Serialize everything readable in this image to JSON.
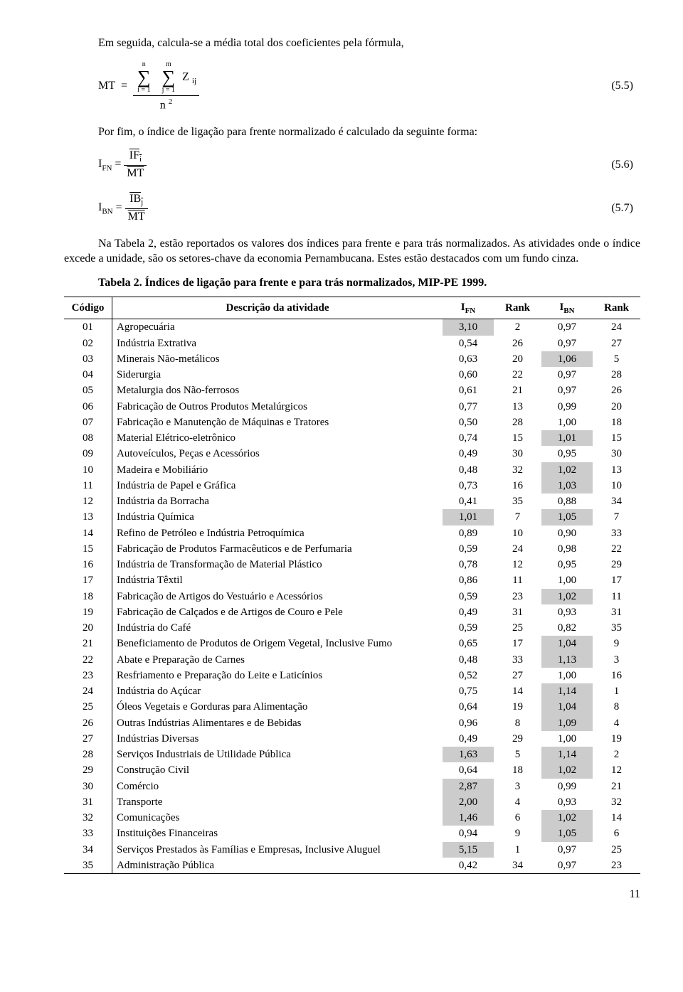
{
  "text": {
    "p1": "Em seguida, calcula-se a média total dos coeficientes pela fórmula,",
    "p2": "Por fim, o índice de ligação para frente normalizado é calculado da seguinte forma:",
    "p3": "Na Tabela 2, estão reportados os valores dos índices para frente e para trás normalizados. As atividades onde o índice excede a unidade, são os setores-chave da economia Pernambucana. Estes estão destacados com um fundo cinza.",
    "tableTitle": "Tabela 2. Índices de ligação para frente e para trás normalizados, MIP-PE 1999.",
    "pageNumber": "11"
  },
  "eq": {
    "e55_num": "(5.5)",
    "e56_num": "(5.6)",
    "e57_num": "(5.7)"
  },
  "table": {
    "headers": {
      "codigo": "Código",
      "desc": "Descrição da atividade",
      "ifn": "I",
      "ifn_sub": "FN",
      "rank1": "Rank",
      "ibn": "I",
      "ibn_sub": "BN",
      "rank2": "Rank"
    },
    "highlight_color": "#cccccc",
    "rows": [
      {
        "c": "01",
        "d": "Agropecuária",
        "ifn": "3,10",
        "r1": "2",
        "ibn": "0,97",
        "r2": "24",
        "h_ifn": true
      },
      {
        "c": "02",
        "d": "Indústria Extrativa",
        "ifn": "0,54",
        "r1": "26",
        "ibn": "0,97",
        "r2": "27"
      },
      {
        "c": "03",
        "d": "Minerais Não-metálicos",
        "ifn": "0,63",
        "r1": "20",
        "ibn": "1,06",
        "r2": "5",
        "h_ibn": true
      },
      {
        "c": "04",
        "d": "Siderurgia",
        "ifn": "0,60",
        "r1": "22",
        "ibn": "0,97",
        "r2": "28"
      },
      {
        "c": "05",
        "d": "Metalurgia dos Não-ferrosos",
        "ifn": "0,61",
        "r1": "21",
        "ibn": "0,97",
        "r2": "26"
      },
      {
        "c": "06",
        "d": "Fabricação de Outros Produtos Metalúrgicos",
        "ifn": "0,77",
        "r1": "13",
        "ibn": "0,99",
        "r2": "20"
      },
      {
        "c": "07",
        "d": "Fabricação e Manutenção de Máquinas e Tratores",
        "ifn": "0,50",
        "r1": "28",
        "ibn": "1,00",
        "r2": "18"
      },
      {
        "c": "08",
        "d": "Material Elétrico-eletrônico",
        "ifn": "0,74",
        "r1": "15",
        "ibn": "1,01",
        "r2": "15",
        "h_ibn": true
      },
      {
        "c": "09",
        "d": "Autoveículos, Peças e Acessórios",
        "ifn": "0,49",
        "r1": "30",
        "ibn": "0,95",
        "r2": "30"
      },
      {
        "c": "10",
        "d": "Madeira e Mobiliário",
        "ifn": "0,48",
        "r1": "32",
        "ibn": "1,02",
        "r2": "13",
        "h_ibn": true
      },
      {
        "c": "11",
        "d": "Indústria de Papel e Gráfica",
        "ifn": "0,73",
        "r1": "16",
        "ibn": "1,03",
        "r2": "10",
        "h_ibn": true
      },
      {
        "c": "12",
        "d": "Indústria da Borracha",
        "ifn": "0,41",
        "r1": "35",
        "ibn": "0,88",
        "r2": "34"
      },
      {
        "c": "13",
        "d": "Indústria Química",
        "ifn": "1,01",
        "r1": "7",
        "ibn": "1,05",
        "r2": "7",
        "h_ifn": true,
        "h_ibn": true
      },
      {
        "c": "14",
        "d": "Refino de Petróleo e Indústria Petroquímica",
        "ifn": "0,89",
        "r1": "10",
        "ibn": "0,90",
        "r2": "33"
      },
      {
        "c": "15",
        "d": "Fabricação de Produtos Farmacêuticos e de Perfumaria",
        "ifn": "0,59",
        "r1": "24",
        "ibn": "0,98",
        "r2": "22"
      },
      {
        "c": "16",
        "d": "Indústria de Transformação de Material Plástico",
        "ifn": "0,78",
        "r1": "12",
        "ibn": "0,95",
        "r2": "29"
      },
      {
        "c": "17",
        "d": "Indústria Têxtil",
        "ifn": "0,86",
        "r1": "11",
        "ibn": "1,00",
        "r2": "17"
      },
      {
        "c": "18",
        "d": "Fabricação de Artigos do Vestuário e Acessórios",
        "ifn": "0,59",
        "r1": "23",
        "ibn": "1,02",
        "r2": "11",
        "h_ibn": true
      },
      {
        "c": "19",
        "d": "Fabricação de Calçados e de Artigos de Couro e Pele",
        "ifn": "0,49",
        "r1": "31",
        "ibn": "0,93",
        "r2": "31"
      },
      {
        "c": "20",
        "d": "Indústria do Café",
        "ifn": "0,59",
        "r1": "25",
        "ibn": "0,82",
        "r2": "35"
      },
      {
        "c": "21",
        "d": "Beneficiamento de Produtos de Origem Vegetal, Inclusive Fumo",
        "ifn": "0,65",
        "r1": "17",
        "ibn": "1,04",
        "r2": "9",
        "h_ibn": true
      },
      {
        "c": "22",
        "d": "Abate e Preparação de Carnes",
        "ifn": "0,48",
        "r1": "33",
        "ibn": "1,13",
        "r2": "3",
        "h_ibn": true
      },
      {
        "c": "23",
        "d": "Resfriamento e Preparação do Leite e Laticínios",
        "ifn": "0,52",
        "r1": "27",
        "ibn": "1,00",
        "r2": "16"
      },
      {
        "c": "24",
        "d": "Indústria do Açúcar",
        "ifn": "0,75",
        "r1": "14",
        "ibn": "1,14",
        "r2": "1",
        "h_ibn": true
      },
      {
        "c": "25",
        "d": "Óleos Vegetais e Gorduras para Alimentação",
        "ifn": "0,64",
        "r1": "19",
        "ibn": "1,04",
        "r2": "8",
        "h_ibn": true
      },
      {
        "c": "26",
        "d": "Outras Indústrias Alimentares e de Bebidas",
        "ifn": "0,96",
        "r1": "8",
        "ibn": "1,09",
        "r2": "4",
        "h_ibn": true
      },
      {
        "c": "27",
        "d": "Indústrias Diversas",
        "ifn": "0,49",
        "r1": "29",
        "ibn": "1,00",
        "r2": "19"
      },
      {
        "c": "28",
        "d": "Serviços Industriais de Utilidade Pública",
        "ifn": "1,63",
        "r1": "5",
        "ibn": "1,14",
        "r2": "2",
        "h_ifn": true,
        "h_ibn": true
      },
      {
        "c": "29",
        "d": "Construção Civil",
        "ifn": "0,64",
        "r1": "18",
        "ibn": "1,02",
        "r2": "12",
        "h_ibn": true
      },
      {
        "c": "30",
        "d": "Comércio",
        "ifn": "2,87",
        "r1": "3",
        "ibn": "0,99",
        "r2": "21",
        "h_ifn": true
      },
      {
        "c": "31",
        "d": "Transporte",
        "ifn": "2,00",
        "r1": "4",
        "ibn": "0,93",
        "r2": "32",
        "h_ifn": true
      },
      {
        "c": "32",
        "d": "Comunicações",
        "ifn": "1,46",
        "r1": "6",
        "ibn": "1,02",
        "r2": "14",
        "h_ifn": true,
        "h_ibn": true
      },
      {
        "c": "33",
        "d": "Instituições Financeiras",
        "ifn": "0,94",
        "r1": "9",
        "ibn": "1,05",
        "r2": "6",
        "h_ibn": true
      },
      {
        "c": "34",
        "d": "Serviços Prestados às Famílias e Empresas, Inclusive Aluguel",
        "ifn": "5,15",
        "r1": "1",
        "ibn": "0,97",
        "r2": "25",
        "h_ifn": true
      },
      {
        "c": "35",
        "d": "Administração Pública",
        "ifn": "0,42",
        "r1": "34",
        "ibn": "0,97",
        "r2": "23"
      }
    ]
  }
}
